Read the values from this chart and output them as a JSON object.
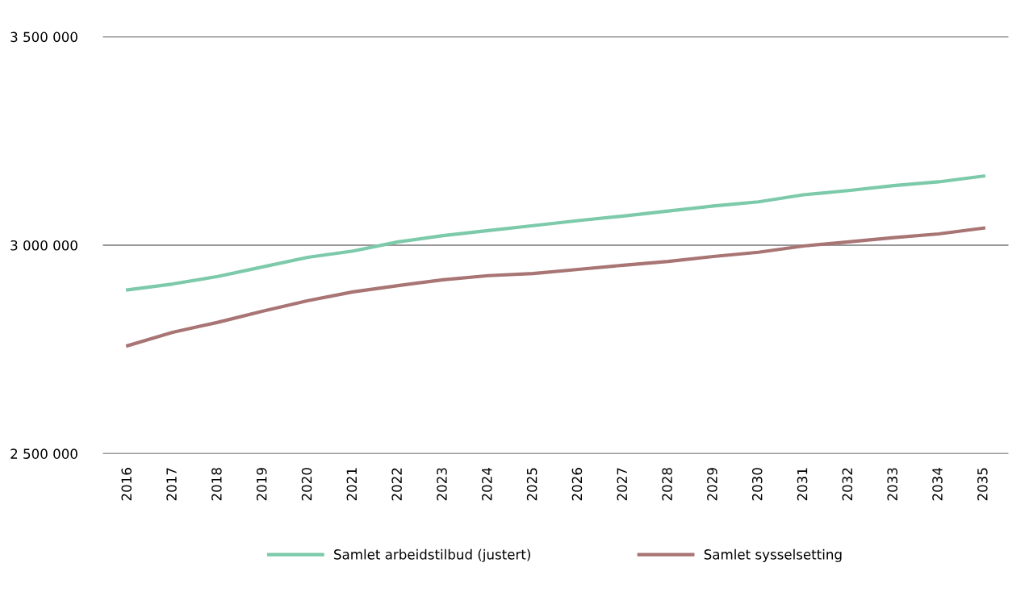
{
  "chart_data": {
    "type": "line",
    "categories": [
      "2016",
      "2017",
      "2018",
      "2019",
      "2020",
      "2021",
      "2022",
      "2023",
      "2024",
      "2025",
      "2026",
      "2027",
      "2028",
      "2029",
      "2030",
      "2031",
      "2032",
      "2033",
      "2034",
      "2035"
    ],
    "series": [
      {
        "name": "Samlet arbeidstilbud (justert)",
        "color": "#7ccaaa",
        "values": [
          2893000,
          2907000,
          2925000,
          2948000,
          2971000,
          2986000,
          3008000,
          3023000,
          3035000,
          3047000,
          3059000,
          3070000,
          3082000,
          3094000,
          3104000,
          3121000,
          3131000,
          3143000,
          3152000,
          3166000
        ]
      },
      {
        "name": "Samlet sysselsetting",
        "color": "#a87474",
        "values": [
          2759000,
          2791000,
          2815000,
          2842000,
          2867000,
          2888000,
          2903000,
          2917000,
          2927000,
          2932000,
          2942000,
          2952000,
          2961000,
          2973000,
          2983000,
          2998000,
          3008000,
          3018000,
          3027000,
          3041000
        ]
      }
    ],
    "ylim": [
      2500000,
      3500000
    ],
    "yticks": [
      {
        "value": 2500000,
        "label": "2 500 000"
      },
      {
        "value": 3000000,
        "label": "3 000 000"
      },
      {
        "value": 3500000,
        "label": "3 500 000"
      }
    ],
    "grid": "y",
    "legend": "bottom",
    "marker": "none",
    "line_style": "solid"
  }
}
